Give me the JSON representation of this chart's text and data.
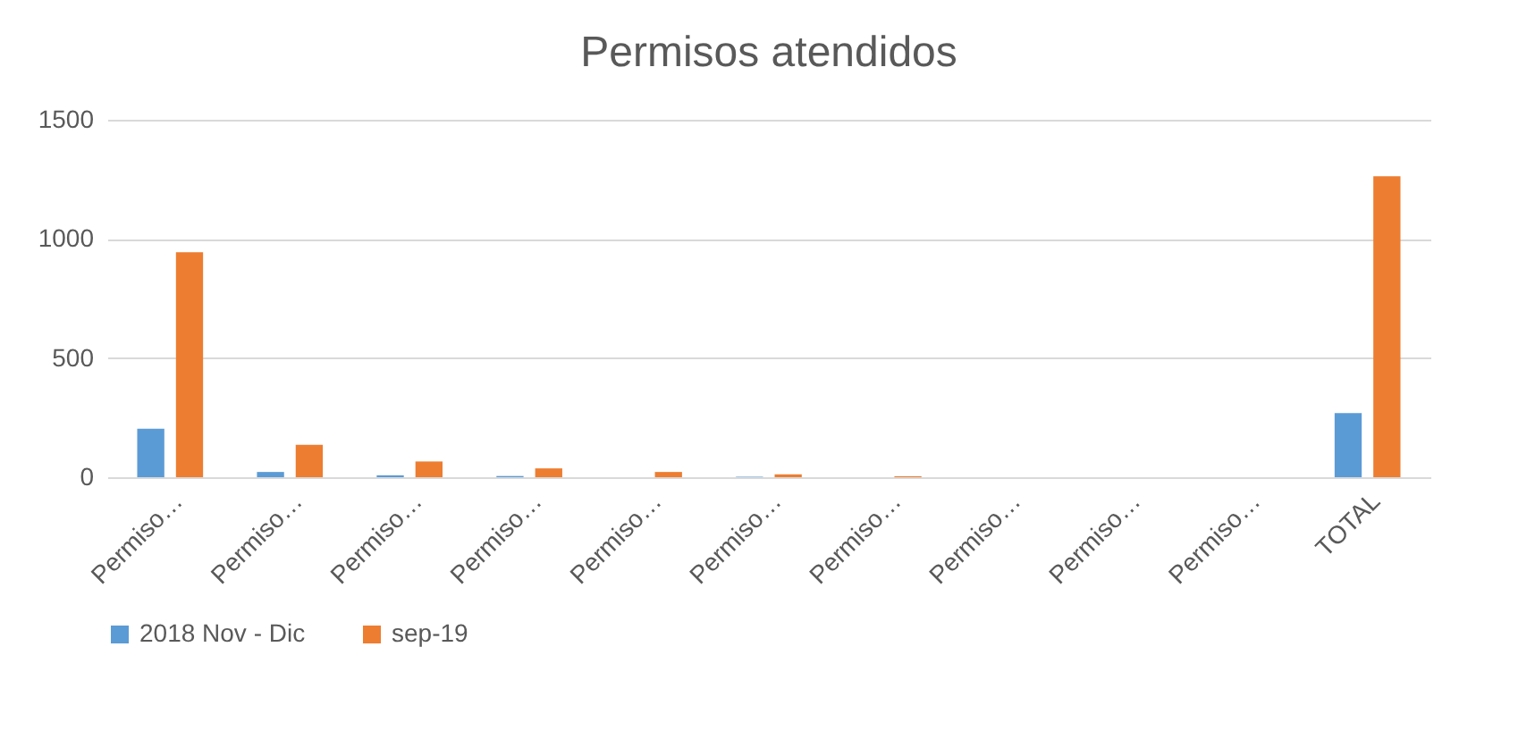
{
  "chart_data": {
    "type": "bar",
    "title": "Permisos atendidos",
    "categories": [
      "Permiso…",
      "Permiso…",
      "Permiso…",
      "Permiso…",
      "Permiso…",
      "Permiso…",
      "Permiso…",
      "Permiso…",
      "Permiso…",
      "Permiso…",
      "TOTAL"
    ],
    "series": [
      {
        "name": "2018 Nov - Dic",
        "color": "#5b9bd5",
        "values": [
          203,
          22,
          8,
          5,
          0,
          2,
          0,
          0,
          0,
          0,
          269
        ]
      },
      {
        "name": "sep-19",
        "color": "#ed7d31",
        "values": [
          944,
          136,
          66,
          37,
          22,
          12,
          4,
          0,
          0,
          0,
          1263
        ]
      }
    ],
    "ylim": [
      0,
      1500
    ],
    "yticks": [
      0,
      500,
      1000,
      1500
    ],
    "grid": "y",
    "legend": "bottom"
  }
}
